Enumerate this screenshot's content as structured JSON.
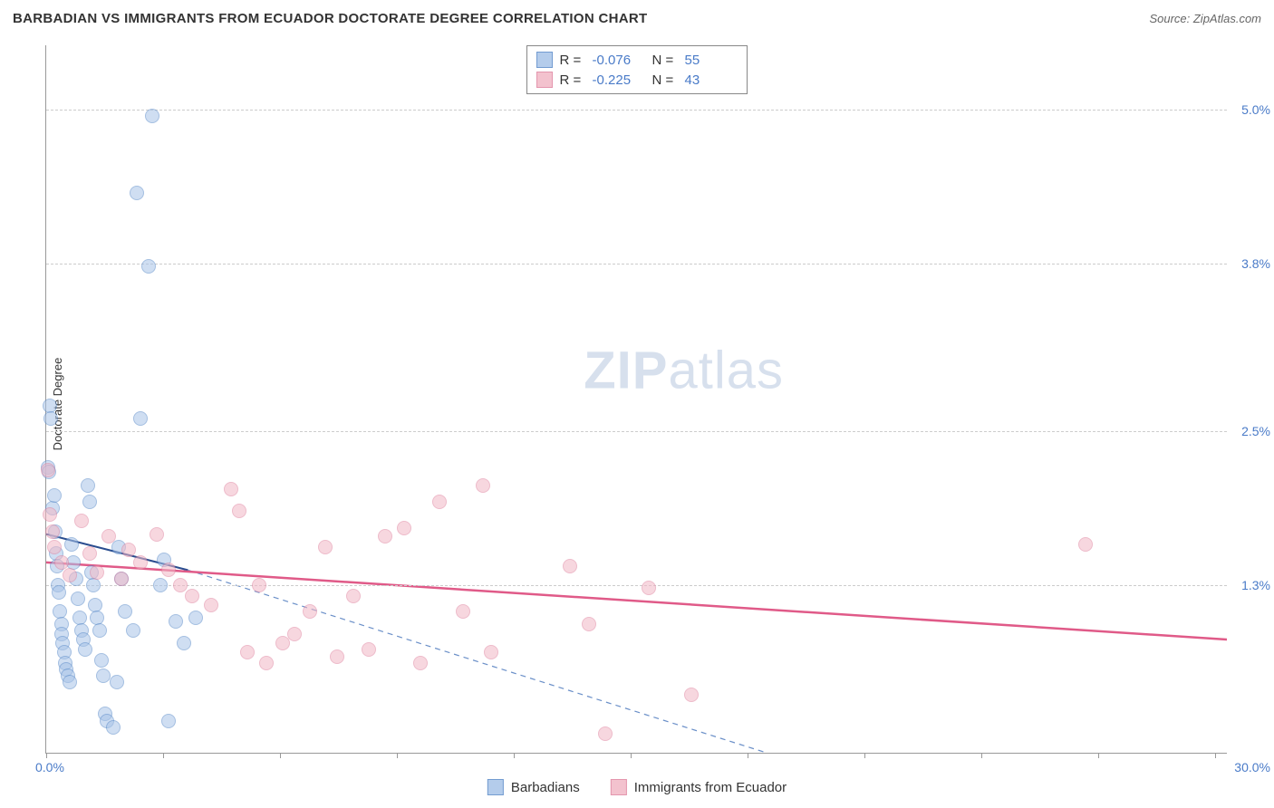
{
  "title": "BARBADIAN VS IMMIGRANTS FROM ECUADOR DOCTORATE DEGREE CORRELATION CHART",
  "source": "Source: ZipAtlas.com",
  "ylabel": "Doctorate Degree",
  "watermark_prefix": "ZIP",
  "watermark_suffix": "atlas",
  "chart": {
    "type": "scatter",
    "xlim": [
      0,
      30
    ],
    "ylim": [
      0,
      5.5
    ],
    "background_color": "#ffffff",
    "grid_color": "#cccccc",
    "axis_color": "#999999",
    "tick_label_color": "#4a7bc8",
    "x_axis": {
      "min_label": "0.0%",
      "max_label": "30.0%",
      "tick_positions_pct": [
        0,
        9.9,
        19.8,
        29.7,
        39.6,
        49.5,
        59.4,
        69.3,
        79.2,
        89.1,
        99.0
      ]
    },
    "y_axis": {
      "gridlines": [
        {
          "value": 1.3,
          "label": "1.3%"
        },
        {
          "value": 2.5,
          "label": "2.5%"
        },
        {
          "value": 3.8,
          "label": "3.8%"
        },
        {
          "value": 5.0,
          "label": "5.0%"
        }
      ]
    },
    "series": [
      {
        "name": "Barbadians",
        "fill_color": "#a8c4e8",
        "stroke_color": "#5b8bc9",
        "fill_opacity": 0.55,
        "marker_radius": 8,
        "stats": {
          "R_label": "R =",
          "R_value": "-0.076",
          "N_label": "N =",
          "N_value": "55"
        },
        "regression": {
          "solid": {
            "x1": 0,
            "y1": 1.7,
            "x2": 3.6,
            "y2": 1.42
          },
          "dashed": {
            "x1": 3.6,
            "y1": 1.42,
            "x2": 18.3,
            "y2": 0.0
          },
          "solid_color": "#2a4d8f",
          "solid_width": 2,
          "dashed_color": "#6a8fc8",
          "dash": "6 5"
        },
        "points": [
          {
            "x": 0.05,
            "y": 2.22
          },
          {
            "x": 0.08,
            "y": 2.18
          },
          {
            "x": 0.1,
            "y": 2.7
          },
          {
            "x": 0.12,
            "y": 2.6
          },
          {
            "x": 0.15,
            "y": 1.9
          },
          {
            "x": 0.2,
            "y": 2.0
          },
          {
            "x": 0.22,
            "y": 1.72
          },
          {
            "x": 0.25,
            "y": 1.55
          },
          {
            "x": 0.28,
            "y": 1.45
          },
          {
            "x": 0.3,
            "y": 1.3
          },
          {
            "x": 0.32,
            "y": 1.25
          },
          {
            "x": 0.35,
            "y": 1.1
          },
          {
            "x": 0.38,
            "y": 1.0
          },
          {
            "x": 0.4,
            "y": 0.92
          },
          {
            "x": 0.42,
            "y": 0.85
          },
          {
            "x": 0.45,
            "y": 0.78
          },
          {
            "x": 0.48,
            "y": 0.7
          },
          {
            "x": 0.5,
            "y": 0.65
          },
          {
            "x": 0.55,
            "y": 0.6
          },
          {
            "x": 0.6,
            "y": 0.55
          },
          {
            "x": 0.65,
            "y": 1.62
          },
          {
            "x": 0.7,
            "y": 1.48
          },
          {
            "x": 0.75,
            "y": 1.35
          },
          {
            "x": 0.8,
            "y": 1.2
          },
          {
            "x": 0.85,
            "y": 1.05
          },
          {
            "x": 0.9,
            "y": 0.95
          },
          {
            "x": 0.95,
            "y": 0.88
          },
          {
            "x": 1.0,
            "y": 0.8
          },
          {
            "x": 1.05,
            "y": 2.08
          },
          {
            "x": 1.1,
            "y": 1.95
          },
          {
            "x": 1.15,
            "y": 1.4
          },
          {
            "x": 1.2,
            "y": 1.3
          },
          {
            "x": 1.25,
            "y": 1.15
          },
          {
            "x": 1.3,
            "y": 1.05
          },
          {
            "x": 1.35,
            "y": 0.95
          },
          {
            "x": 1.4,
            "y": 0.72
          },
          {
            "x": 1.45,
            "y": 0.6
          },
          {
            "x": 1.5,
            "y": 0.3
          },
          {
            "x": 1.55,
            "y": 0.25
          },
          {
            "x": 1.7,
            "y": 0.2
          },
          {
            "x": 1.8,
            "y": 0.55
          },
          {
            "x": 1.85,
            "y": 1.6
          },
          {
            "x": 1.9,
            "y": 1.35
          },
          {
            "x": 2.0,
            "y": 1.1
          },
          {
            "x": 2.2,
            "y": 0.95
          },
          {
            "x": 2.4,
            "y": 2.6
          },
          {
            "x": 2.7,
            "y": 4.95
          },
          {
            "x": 2.3,
            "y": 4.35
          },
          {
            "x": 2.6,
            "y": 3.78
          },
          {
            "x": 2.9,
            "y": 1.3
          },
          {
            "x": 3.0,
            "y": 1.5
          },
          {
            "x": 3.1,
            "y": 0.25
          },
          {
            "x": 3.3,
            "y": 1.02
          },
          {
            "x": 3.5,
            "y": 0.85
          },
          {
            "x": 3.8,
            "y": 1.05
          }
        ]
      },
      {
        "name": "Immigrants from Ecuador",
        "fill_color": "#f2b8c6",
        "stroke_color": "#e084a0",
        "fill_opacity": 0.55,
        "marker_radius": 8,
        "stats": {
          "R_label": "R =",
          "R_value": "-0.225",
          "N_label": "N =",
          "N_value": "43"
        },
        "regression": {
          "solid": {
            "x1": 0,
            "y1": 1.48,
            "x2": 30,
            "y2": 0.88
          },
          "solid_color": "#e05a88",
          "solid_width": 2.5
        },
        "points": [
          {
            "x": 0.05,
            "y": 2.2
          },
          {
            "x": 0.1,
            "y": 1.85
          },
          {
            "x": 0.15,
            "y": 1.72
          },
          {
            "x": 0.2,
            "y": 1.6
          },
          {
            "x": 0.4,
            "y": 1.48
          },
          {
            "x": 0.6,
            "y": 1.38
          },
          {
            "x": 0.9,
            "y": 1.8
          },
          {
            "x": 1.1,
            "y": 1.55
          },
          {
            "x": 1.3,
            "y": 1.4
          },
          {
            "x": 1.6,
            "y": 1.68
          },
          {
            "x": 1.9,
            "y": 1.35
          },
          {
            "x": 2.1,
            "y": 1.58
          },
          {
            "x": 2.4,
            "y": 1.48
          },
          {
            "x": 2.8,
            "y": 1.7
          },
          {
            "x": 3.1,
            "y": 1.42
          },
          {
            "x": 3.4,
            "y": 1.3
          },
          {
            "x": 3.7,
            "y": 1.22
          },
          {
            "x": 4.2,
            "y": 1.15
          },
          {
            "x": 4.7,
            "y": 2.05
          },
          {
            "x": 5.1,
            "y": 0.78
          },
          {
            "x": 5.4,
            "y": 1.3
          },
          {
            "x": 5.6,
            "y": 0.7
          },
          {
            "x": 6.0,
            "y": 0.85
          },
          {
            "x": 6.3,
            "y": 0.92
          },
          {
            "x": 6.7,
            "y": 1.1
          },
          {
            "x": 7.1,
            "y": 1.6
          },
          {
            "x": 7.4,
            "y": 0.75
          },
          {
            "x": 7.8,
            "y": 1.22
          },
          {
            "x": 8.2,
            "y": 0.8
          },
          {
            "x": 8.6,
            "y": 1.68
          },
          {
            "x": 9.1,
            "y": 1.75
          },
          {
            "x": 9.5,
            "y": 0.7
          },
          {
            "x": 10.0,
            "y": 1.95
          },
          {
            "x": 10.6,
            "y": 1.1
          },
          {
            "x": 11.1,
            "y": 2.08
          },
          {
            "x": 11.3,
            "y": 0.78
          },
          {
            "x": 13.3,
            "y": 1.45
          },
          {
            "x": 13.8,
            "y": 1.0
          },
          {
            "x": 14.2,
            "y": 0.15
          },
          {
            "x": 15.3,
            "y": 1.28
          },
          {
            "x": 16.4,
            "y": 0.45
          },
          {
            "x": 26.4,
            "y": 1.62
          },
          {
            "x": 4.9,
            "y": 1.88
          }
        ]
      }
    ]
  },
  "bottom_legend": {
    "series1_label": "Barbadians",
    "series2_label": "Immigrants from Ecuador"
  }
}
